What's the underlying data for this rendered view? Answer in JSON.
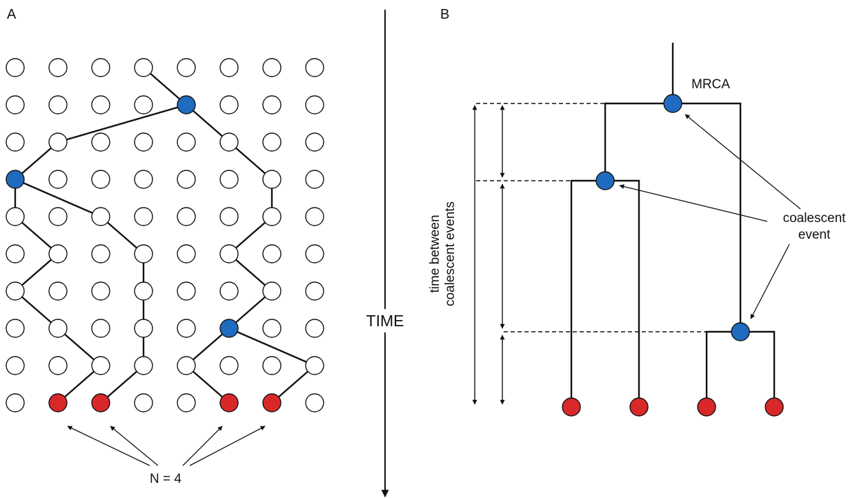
{
  "panel_a": {
    "letter": "A",
    "sample_label": "N = 4",
    "grid": {
      "columns": 8,
      "rows": 10
    },
    "ancestor_nodes": [
      [
        4,
        1
      ],
      [
        0,
        3
      ],
      [
        5,
        7
      ]
    ],
    "sample_nodes": [
      [
        1,
        9
      ],
      [
        2,
        9
      ],
      [
        5,
        9
      ],
      [
        6,
        9
      ]
    ],
    "lineage_edges": [
      [
        [
          3,
          0
        ],
        [
          4,
          1
        ]
      ],
      [
        [
          4,
          1
        ],
        [
          1,
          2
        ]
      ],
      [
        [
          4,
          1
        ],
        [
          5,
          2
        ]
      ],
      [
        [
          1,
          2
        ],
        [
          0,
          3
        ]
      ],
      [
        [
          5,
          2
        ],
        [
          6,
          3
        ]
      ],
      [
        [
          0,
          3
        ],
        [
          0,
          4
        ]
      ],
      [
        [
          0,
          3
        ],
        [
          2,
          4
        ]
      ],
      [
        [
          6,
          3
        ],
        [
          6,
          4
        ]
      ],
      [
        [
          0,
          4
        ],
        [
          1,
          5
        ]
      ],
      [
        [
          2,
          4
        ],
        [
          3,
          5
        ]
      ],
      [
        [
          6,
          4
        ],
        [
          5,
          5
        ]
      ],
      [
        [
          1,
          5
        ],
        [
          0,
          6
        ]
      ],
      [
        [
          3,
          5
        ],
        [
          3,
          6
        ]
      ],
      [
        [
          5,
          5
        ],
        [
          6,
          6
        ]
      ],
      [
        [
          0,
          6
        ],
        [
          1,
          7
        ]
      ],
      [
        [
          3,
          6
        ],
        [
          3,
          7
        ]
      ],
      [
        [
          6,
          6
        ],
        [
          5,
          7
        ]
      ],
      [
        [
          1,
          7
        ],
        [
          2,
          8
        ]
      ],
      [
        [
          3,
          7
        ],
        [
          3,
          8
        ]
      ],
      [
        [
          5,
          7
        ],
        [
          4,
          8
        ]
      ],
      [
        [
          5,
          7
        ],
        [
          7,
          8
        ]
      ],
      [
        [
          2,
          8
        ],
        [
          1,
          9
        ]
      ],
      [
        [
          3,
          8
        ],
        [
          2,
          9
        ]
      ],
      [
        [
          4,
          8
        ],
        [
          5,
          9
        ]
      ],
      [
        [
          7,
          8
        ],
        [
          6,
          9
        ]
      ]
    ]
  },
  "time_axis": {
    "label": "TIME"
  },
  "panel_b": {
    "letter": "B",
    "mrca_label": "MRCA",
    "coalescent_label_line1": "coalescent",
    "coalescent_label_line2": "event",
    "interval_label_line1": "time between",
    "interval_label_line2": "coalescent events",
    "tips": 4
  },
  "colors": {
    "ancestor": "#1f6bbf",
    "sample": "#d8282a",
    "stroke": "#111111",
    "empty": "#ffffff"
  }
}
